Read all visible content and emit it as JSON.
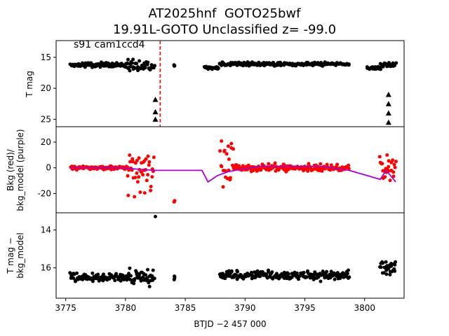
{
  "title": {
    "line1": "AT2025hnf  GOTO25bwf",
    "line2": "19.91L-GOTO Unclassified z= -99.0"
  },
  "annotation": "s91 cam1ccd4",
  "xlabel": "BTJD −2 457 000",
  "chart_data": [
    {
      "type": "scatter",
      "panel": "top",
      "ylabel": "T mag",
      "y_inverted": true,
      "xlim": [
        3774.2,
        3803.3
      ],
      "ylim": [
        26.2,
        12.3
      ],
      "yticks": [
        15,
        20,
        25
      ],
      "marker": "black circles; black triangles = upper limits",
      "vline": {
        "x": 3782.9,
        "color": "#ff0000",
        "style": "dashed"
      },
      "segments": [
        {
          "x": [
            3775.4,
            3780.2
          ],
          "y": 16.2,
          "spread": 0.5
        },
        {
          "x": [
            3780.2,
            3782.4
          ],
          "y": 16.4,
          "spread": 1.2
        },
        {
          "x": [
            3784.1,
            3784.1
          ],
          "y": 16.2,
          "spread": 0.3
        },
        {
          "x": [
            3786.6,
            3787.8
          ],
          "y": 16.7,
          "spread": 0.4
        },
        {
          "x": [
            3787.9,
            3798.7
          ],
          "y": 16.1,
          "spread": 0.4
        },
        {
          "x": [
            3800.2,
            3801.3
          ],
          "y": 16.7,
          "spread": 0.4
        },
        {
          "x": [
            3801.3,
            3802.6
          ],
          "y": 16.2,
          "spread": 0.8
        }
      ],
      "upper_limits": [
        {
          "x": 3782.5,
          "y": [
            21.8,
            23.8,
            25.0
          ]
        },
        {
          "x": 3802.0,
          "y": [
            21.0,
            22.5,
            24.0,
            25.5
          ]
        }
      ]
    },
    {
      "type": "scatter",
      "panel": "middle",
      "ylabel": "Bkg (red)/\nbkg_model (purple)",
      "xlim": [
        3774.2,
        3803.3
      ],
      "ylim": [
        -35,
        32
      ],
      "yticks": [
        -20,
        0,
        20
      ],
      "series": [
        {
          "color": "#ff0000",
          "kind": "points",
          "segments": [
            {
              "x": [
                3775.4,
                3780.2
              ],
              "y": 0,
              "spread": 2
            },
            {
              "x": [
                3780.2,
                3782.4
              ],
              "y": 0,
              "spread": 30
            },
            {
              "x": [
                3784.1,
                3784.1
              ],
              "y": -27,
              "spread": 3
            },
            {
              "x": [
                3787.9,
                3789.0
              ],
              "y": 0,
              "spread": 30
            },
            {
              "x": [
                3789.0,
                3798.7
              ],
              "y": 0,
              "spread": 4
            },
            {
              "x": [
                3801.3,
                3802.6
              ],
              "y": 0,
              "spread": 20
            }
          ]
        },
        {
          "color": "#aa00cc",
          "kind": "line",
          "x": [
            3775.4,
            3779.6,
            3781.0,
            3782.4,
            3786.4,
            3786.9,
            3787.7,
            3788.6,
            3791.0,
            3796.5,
            3798.7,
            3800.2,
            3801.3,
            3801.8,
            3802.6
          ],
          "y": [
            0,
            0,
            -1,
            -2,
            -2,
            -11,
            -6,
            -3,
            1,
            1,
            -2,
            -6,
            -9,
            -2,
            -11
          ]
        }
      ]
    },
    {
      "type": "scatter",
      "panel": "bottom",
      "ylabel": "T mag −\nbkg_model",
      "y_inverted": true,
      "xlim": [
        3774.2,
        3803.3
      ],
      "ylim": [
        17.6,
        13.1
      ],
      "yticks": [
        14,
        16
      ],
      "xticks": [
        3775,
        3780,
        3785,
        3790,
        3795,
        3800
      ],
      "segments": [
        {
          "x": [
            3775.4,
            3780.2
          ],
          "y": 16.5,
          "spread": 0.3
        },
        {
          "x": [
            3780.2,
            3782.4
          ],
          "y": 16.5,
          "spread": 0.7
        },
        {
          "x": [
            3784.1,
            3784.1
          ],
          "y": 16.5,
          "spread": 0.2
        },
        {
          "x": [
            3787.9,
            3798.7
          ],
          "y": 16.4,
          "spread": 0.35
        },
        {
          "x": [
            3801.3,
            3802.6
          ],
          "y": 16.0,
          "spread": 0.6
        }
      ],
      "outliers": [
        {
          "x": 3782.5,
          "y": 13.3
        }
      ]
    }
  ]
}
